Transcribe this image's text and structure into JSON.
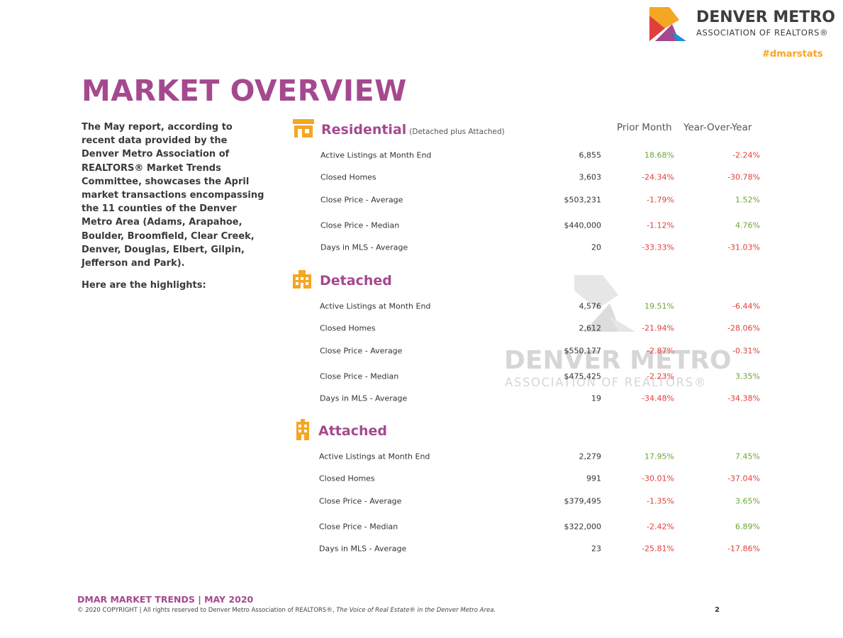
{
  "header": {
    "logo_name": "DENVER METRO",
    "logo_sub": "ASSOCIATION OF REALTORS®",
    "hashtag": "#dmarstats"
  },
  "title": "MARKET OVERVIEW",
  "intro": [
    "The May report, according to recent data provided by the Denver Metro Association of REALTORS® Market Trends Committee, showcases the April market transactions encompassing the 11 counties of the Denver Metro Area (Adams, Arapahoe, Boulder, Broomfield, Clear Creek, Denver, Douglas, Elbert, Gilpin, Jefferson and Park).",
    "Here are the highlights:"
  ],
  "columns": [
    "Prior Month",
    "Year-Over-Year"
  ],
  "sections": [
    {
      "name": "Residential",
      "note": "(Detached plus Attached)",
      "rows": [
        [
          "Active Listings at Month End",
          "6,855",
          "18.68%",
          "-2.24%"
        ],
        [
          "Closed Homes",
          "3,603",
          "-24.34%",
          "-30.78%"
        ],
        [
          "Close Price - Average",
          "$503,231",
          "-1.79%",
          "1.52%"
        ],
        [
          "Close Price - Median",
          "$440,000",
          "-1.12%",
          "4.76%"
        ],
        [
          "Days in MLS - Average",
          "20",
          "-33.33%",
          "-31.03%"
        ]
      ]
    },
    {
      "name": "Detached",
      "rows": [
        [
          "Active Listings at Month End",
          "4,576",
          "19.51%",
          "-6.44%"
        ],
        [
          "Closed Homes",
          "2,612",
          "-21.94%",
          "-28.06%"
        ],
        [
          "Close Price - Average",
          "$550,177",
          "-2.87%",
          "-0.31%"
        ],
        [
          "Close Price - Median",
          "$475,425",
          "-2.23%",
          "3.35%"
        ],
        [
          "Days in MLS - Average",
          "19",
          "-34.48%",
          "-34.38%"
        ]
      ]
    },
    {
      "name": "Attached",
      "rows": [
        [
          "Active Listings at Month End",
          "2,279",
          "17.95%",
          "7.45%"
        ],
        [
          "Closed Homes",
          "991",
          "-30.01%",
          "-37.04%"
        ],
        [
          "Close Price - Average",
          "$379,495",
          "-1.35%",
          "3.65%"
        ],
        [
          "Close Price - Median",
          "$322,000",
          "-2.42%",
          "6.89%"
        ],
        [
          "Days in MLS - Average",
          "23",
          "-25.81%",
          "-17.86%"
        ]
      ]
    }
  ],
  "watermark": {
    "name": "DENVER METRO",
    "sub": "ASSOCIATION OF REALTORS®"
  },
  "footer": {
    "title": "DMAR MARKET TRENDS | MAY 2020",
    "copyright": "© 2020 COPYRIGHT | All rights reserved to Denver Metro Association of REALTORS®,",
    "tagline": "The Voice of Real Estate® in the Denver Metro Area.",
    "page": "2"
  }
}
